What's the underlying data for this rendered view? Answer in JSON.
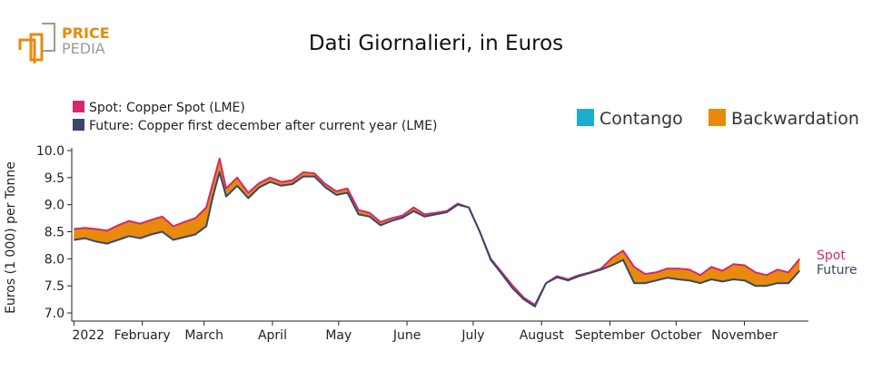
{
  "logo": {
    "line1": "PRICE",
    "line2": "PEDIA"
  },
  "colors": {
    "spot": "#d6286e",
    "future": "#34496b",
    "contango": "#1aafcf",
    "backwardation": "#e88a0c",
    "logo_orange": "#e88a0c",
    "logo_gray": "#9a9a9a"
  },
  "chart_data": {
    "type": "area",
    "title": "Dati Giornalieri, in Euros",
    "ylabel": "Euros (1 000) per Tonne",
    "xlabel": "",
    "ylim": [
      6.85,
      10.05
    ],
    "yticks": [
      7.0,
      7.5,
      8.0,
      8.5,
      9.0,
      9.5,
      10.0
    ],
    "ytick_labels": [
      "7.0",
      "7.5",
      "8.0",
      "8.5",
      "9.0",
      "9.5",
      "10.0"
    ],
    "xlim": [
      "2021-12-31",
      "2022-11-30"
    ],
    "xticks": [
      {
        "date": "2022-01-01",
        "label": "2022"
      },
      {
        "date": "2022-02-01",
        "label": "February"
      },
      {
        "date": "2022-03-01",
        "label": "March"
      },
      {
        "date": "2022-04-01",
        "label": "April"
      },
      {
        "date": "2022-05-01",
        "label": "May"
      },
      {
        "date": "2022-06-01",
        "label": "June"
      },
      {
        "date": "2022-07-01",
        "label": "July"
      },
      {
        "date": "2022-08-01",
        "label": "August"
      },
      {
        "date": "2022-09-01",
        "label": "September"
      },
      {
        "date": "2022-10-01",
        "label": "October"
      },
      {
        "date": "2022-11-01",
        "label": "November"
      }
    ],
    "legend": {
      "series": [
        {
          "name": "Spot: Copper Spot (LME)"
        },
        {
          "name": "Future: Copper first december after current year (LME)"
        }
      ],
      "fill": [
        {
          "name": "Contango"
        },
        {
          "name": "Backwardation"
        }
      ]
    },
    "end_labels": {
      "spot": "Spot",
      "future": "Future"
    },
    "x": [
      "2022-01-01",
      "2022-01-06",
      "2022-01-11",
      "2022-01-16",
      "2022-01-21",
      "2022-01-26",
      "2022-01-31",
      "2022-02-05",
      "2022-02-10",
      "2022-02-15",
      "2022-02-20",
      "2022-02-25",
      "2022-03-02",
      "2022-03-05",
      "2022-03-08",
      "2022-03-11",
      "2022-03-16",
      "2022-03-21",
      "2022-03-26",
      "2022-03-31",
      "2022-04-05",
      "2022-04-10",
      "2022-04-15",
      "2022-04-20",
      "2022-04-25",
      "2022-04-30",
      "2022-05-05",
      "2022-05-10",
      "2022-05-15",
      "2022-05-20",
      "2022-05-25",
      "2022-05-30",
      "2022-06-04",
      "2022-06-09",
      "2022-06-14",
      "2022-06-19",
      "2022-06-24",
      "2022-06-29",
      "2022-07-04",
      "2022-07-09",
      "2022-07-14",
      "2022-07-19",
      "2022-07-24",
      "2022-07-29",
      "2022-08-03",
      "2022-08-08",
      "2022-08-13",
      "2022-08-18",
      "2022-08-23",
      "2022-08-28",
      "2022-09-02",
      "2022-09-07",
      "2022-09-12",
      "2022-09-17",
      "2022-09-22",
      "2022-09-27",
      "2022-10-02",
      "2022-10-07",
      "2022-10-12",
      "2022-10-17",
      "2022-10-22",
      "2022-10-27",
      "2022-11-01",
      "2022-11-06",
      "2022-11-11",
      "2022-11-16",
      "2022-11-21",
      "2022-11-26"
    ],
    "series": [
      {
        "name": "Spot",
        "values": [
          8.55,
          8.57,
          8.55,
          8.52,
          8.62,
          8.7,
          8.65,
          8.72,
          8.78,
          8.6,
          8.68,
          8.75,
          8.95,
          9.4,
          9.85,
          9.3,
          9.5,
          9.22,
          9.4,
          9.5,
          9.42,
          9.45,
          9.6,
          9.58,
          9.38,
          9.25,
          9.3,
          8.9,
          8.85,
          8.68,
          8.75,
          8.8,
          8.95,
          8.82,
          8.85,
          8.88,
          9.02,
          8.95,
          8.5,
          8.0,
          7.75,
          7.5,
          7.28,
          7.15,
          7.55,
          7.68,
          7.62,
          7.7,
          7.75,
          7.82,
          8.02,
          8.15,
          7.85,
          7.72,
          7.75,
          7.82,
          7.82,
          7.8,
          7.7,
          7.85,
          7.78,
          7.9,
          7.88,
          7.75,
          7.7,
          7.8,
          7.75,
          8.0
        ]
      },
      {
        "name": "Future",
        "values": [
          8.35,
          8.38,
          8.32,
          8.28,
          8.35,
          8.42,
          8.38,
          8.45,
          8.5,
          8.35,
          8.4,
          8.45,
          8.6,
          9.15,
          9.6,
          9.15,
          9.35,
          9.12,
          9.32,
          9.42,
          9.35,
          9.38,
          9.52,
          9.52,
          9.32,
          9.18,
          9.22,
          8.82,
          8.78,
          8.62,
          8.7,
          8.76,
          8.88,
          8.78,
          8.82,
          8.86,
          9.0,
          8.95,
          8.5,
          7.98,
          7.72,
          7.45,
          7.25,
          7.12,
          7.55,
          7.66,
          7.6,
          7.68,
          7.74,
          7.8,
          7.88,
          7.98,
          7.55,
          7.55,
          7.6,
          7.65,
          7.62,
          7.6,
          7.55,
          7.62,
          7.58,
          7.62,
          7.6,
          7.5,
          7.5,
          7.55,
          7.55,
          7.78
        ]
      }
    ]
  }
}
